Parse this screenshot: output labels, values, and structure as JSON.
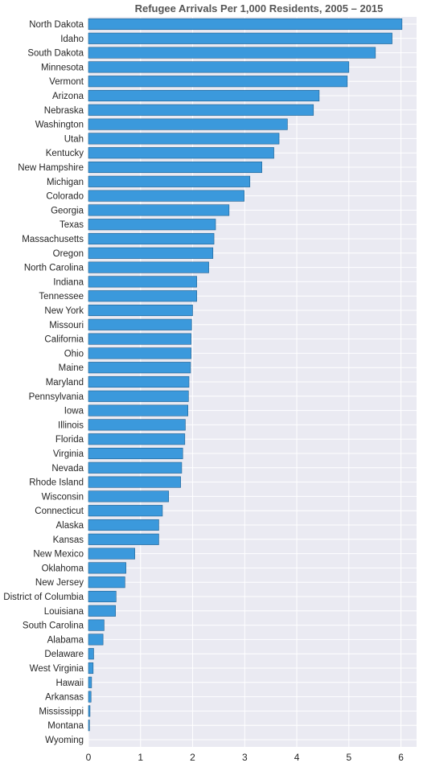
{
  "chart_data": {
    "type": "bar",
    "orientation": "horizontal",
    "title": "Refugee Arrivals Per 1,000 Residents, 2005 – 2015",
    "xlabel": "",
    "ylabel": "",
    "xlim": [
      0,
      6.3
    ],
    "xticks": [
      "0",
      "1",
      "2",
      "3",
      "4",
      "5",
      "6"
    ],
    "grid": true,
    "bar_color": "#3b99dc",
    "bar_edge_color": "#1f5f8f",
    "background_color": "#eaeaf2",
    "grid_color": "#ffffff",
    "categories": [
      "North Dakota",
      "Idaho",
      "South Dakota",
      "Minnesota",
      "Vermont",
      "Arizona",
      "Nebraska",
      "Washington",
      "Utah",
      "Kentucky",
      "New Hampshire",
      "Michigan",
      "Colorado",
      "Georgia",
      "Texas",
      "Massachusetts",
      "Oregon",
      "North Carolina",
      "Indiana",
      "Tennessee",
      "New York",
      "Missouri",
      "California",
      "Ohio",
      "Maine",
      "Maryland",
      "Pennsylvania",
      "Iowa",
      "Illinois",
      "Florida",
      "Virginia",
      "Nevada",
      "Rhode Island",
      "Wisconsin",
      "Connecticut",
      "Alaska",
      "Kansas",
      "New Mexico",
      "Oklahoma",
      "New Jersey",
      "District of Columbia",
      "Louisiana",
      "South Carolina",
      "Alabama",
      "Delaware",
      "West Virginia",
      "Hawaii",
      "Arkansas",
      "Mississippi",
      "Montana",
      "Wyoming"
    ],
    "values": [
      6.02,
      5.83,
      5.51,
      5.0,
      4.97,
      4.43,
      4.32,
      3.82,
      3.66,
      3.56,
      3.33,
      3.1,
      2.99,
      2.7,
      2.44,
      2.41,
      2.39,
      2.31,
      2.08,
      2.08,
      2.0,
      1.98,
      1.97,
      1.97,
      1.96,
      1.93,
      1.92,
      1.91,
      1.86,
      1.85,
      1.81,
      1.79,
      1.77,
      1.54,
      1.42,
      1.35,
      1.35,
      0.89,
      0.72,
      0.7,
      0.53,
      0.52,
      0.3,
      0.28,
      0.1,
      0.09,
      0.06,
      0.05,
      0.03,
      0.02,
      0.0
    ]
  }
}
